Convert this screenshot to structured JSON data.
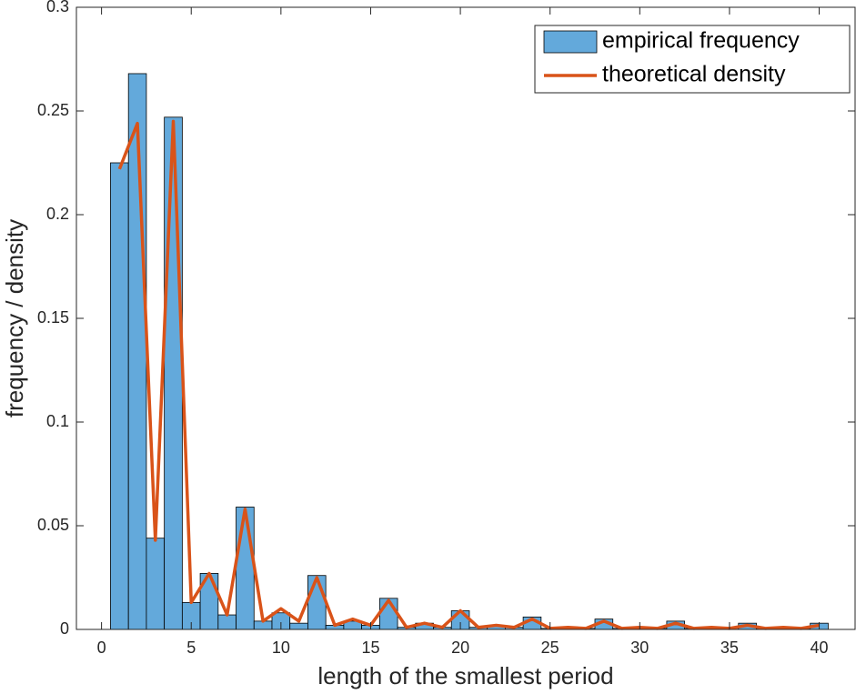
{
  "chart_data": {
    "type": "histogram",
    "xlabel": "length of the smallest period",
    "ylabel": "frequency / density",
    "xlim": [
      -1.4,
      42
    ],
    "ylim": [
      0,
      0.3
    ],
    "xticks": [
      0,
      5,
      10,
      15,
      20,
      25,
      30,
      35,
      40
    ],
    "yticks": [
      0,
      0.05,
      0.1,
      0.15,
      0.2,
      0.25,
      0.3
    ],
    "grid": false,
    "legend": "upper right",
    "bins": [
      0.5,
      1.5,
      2.5,
      3.5,
      4.5,
      5.5,
      6.5,
      7.5,
      8.5,
      9.5,
      10.5,
      11.5,
      12.5,
      13.5,
      14.5,
      15.5,
      16.5,
      17.5,
      18.5,
      19.5,
      20.5,
      21.5,
      22.5,
      23.5,
      24.5,
      25.5,
      26.5,
      27.5,
      28.5,
      29.5,
      30.5,
      31.5,
      32.5,
      33.5,
      34.5,
      35.5,
      36.5,
      37.5,
      38.5,
      39.5,
      40.5
    ],
    "series": [
      {
        "name": "empirical frequency",
        "type": "histogram",
        "color": "#63a9db",
        "values": [
          0.225,
          0.268,
          0.044,
          0.247,
          0.013,
          0.027,
          0.007,
          0.059,
          0.004,
          0.008,
          0.003,
          0.026,
          0.002,
          0.004,
          0.002,
          0.015,
          0.001,
          0.003,
          0.001,
          0.009,
          0.001,
          0.002,
          0.001,
          0.006,
          0.0005,
          0.001,
          0.0005,
          0.005,
          0.0005,
          0.001,
          0.0005,
          0.004,
          0.0005,
          0.001,
          0.001,
          0.003,
          0.0005,
          0.001,
          0.0005,
          0.003
        ]
      },
      {
        "name": "theoretical density",
        "type": "line",
        "color": "#d95319",
        "x": [
          1,
          2,
          3,
          4,
          5,
          6,
          7,
          8,
          9,
          10,
          11,
          12,
          13,
          14,
          15,
          16,
          17,
          18,
          19,
          20,
          21,
          22,
          23,
          24,
          25,
          26,
          27,
          28,
          29,
          30,
          31,
          32,
          33,
          34,
          35,
          36,
          37,
          38,
          39,
          40
        ],
        "values": [
          0.222,
          0.244,
          0.043,
          0.245,
          0.013,
          0.027,
          0.007,
          0.058,
          0.004,
          0.01,
          0.004,
          0.025,
          0.002,
          0.005,
          0.002,
          0.014,
          0.001,
          0.003,
          0.001,
          0.009,
          0.001,
          0.002,
          0.001,
          0.005,
          0.0005,
          0.001,
          0.0005,
          0.004,
          0.0005,
          0.001,
          0.0005,
          0.003,
          0.0005,
          0.001,
          0.0005,
          0.002,
          0.0005,
          0.001,
          0.0005,
          0.002
        ]
      }
    ]
  }
}
